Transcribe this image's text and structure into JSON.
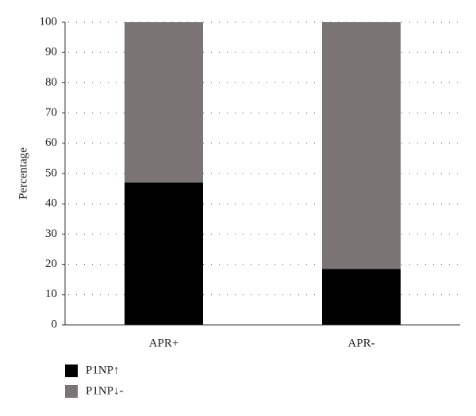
{
  "chart_data": {
    "type": "bar",
    "stacked": true,
    "y_label": "Percentage",
    "categories": [
      "APR+",
      "APR-"
    ],
    "series": [
      {
        "name": "P1NP↑",
        "color": "#000000",
        "values": [
          47,
          18.5
        ]
      },
      {
        "name": "P1NP↓-",
        "color": "#7a7574",
        "values": [
          53,
          81.5
        ]
      }
    ],
    "ylim": [
      0,
      100
    ],
    "yticks": [
      0,
      10,
      20,
      30,
      40,
      50,
      60,
      70,
      80,
      90,
      100
    ],
    "grid": true
  }
}
